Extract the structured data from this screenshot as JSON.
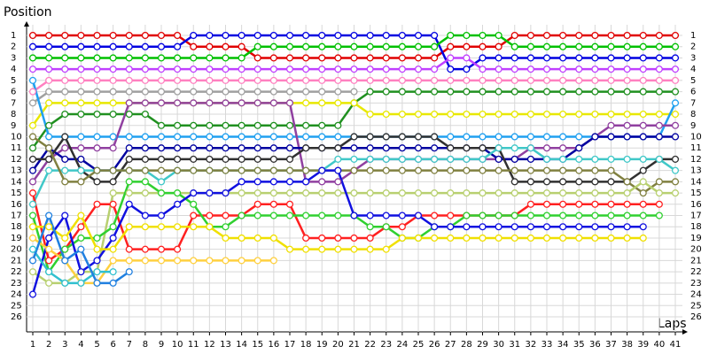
{
  "chart_data": {
    "type": "line",
    "title": "Position",
    "x_label": "Laps",
    "x": [
      1,
      2,
      3,
      4,
      5,
      6,
      7,
      8,
      9,
      10,
      11,
      12,
      13,
      14,
      15,
      16,
      17,
      18,
      19,
      20,
      21,
      22,
      23,
      24,
      25,
      26,
      27,
      28,
      29,
      30,
      31,
      32,
      33,
      34,
      35,
      36,
      37,
      38,
      39,
      40,
      41
    ],
    "xlim": [
      1,
      41
    ],
    "ylim": [
      1,
      26
    ],
    "y_inverted": true,
    "grid": true,
    "xticks": [
      1,
      2,
      3,
      4,
      5,
      6,
      7,
      8,
      9,
      10,
      11,
      12,
      13,
      14,
      15,
      16,
      17,
      18,
      19,
      20,
      21,
      22,
      23,
      24,
      25,
      26,
      27,
      28,
      29,
      30,
      31,
      32,
      33,
      34,
      35,
      36,
      37,
      38,
      39,
      40,
      41
    ],
    "yticks": [
      1,
      2,
      3,
      4,
      5,
      6,
      7,
      8,
      9,
      10,
      11,
      12,
      13,
      14,
      15,
      16,
      17,
      18,
      19,
      20,
      21,
      22,
      23,
      24,
      25,
      26
    ],
    "series": [
      {
        "color": "#e00000",
        "values": [
          1,
          1,
          1,
          1,
          1,
          1,
          1,
          1,
          1,
          1,
          2,
          2,
          2,
          2,
          3,
          3,
          3,
          3,
          3,
          3,
          3,
          3,
          3,
          3,
          3,
          3,
          2,
          2,
          2,
          2,
          1,
          1,
          1,
          1,
          1,
          1,
          1,
          1,
          1,
          1,
          1
        ]
      },
      {
        "color": "#0000e0",
        "values": [
          2,
          2,
          2,
          2,
          2,
          2,
          2,
          2,
          2,
          2,
          1,
          1,
          1,
          1,
          1,
          1,
          1,
          1,
          1,
          1,
          1,
          1,
          1,
          1,
          1,
          1,
          4,
          4,
          3,
          3,
          3,
          3,
          3,
          3,
          3,
          3,
          3,
          3,
          3,
          3,
          3
        ]
      },
      {
        "color": "#00c000",
        "values": [
          3,
          3,
          3,
          3,
          3,
          3,
          3,
          3,
          3,
          3,
          3,
          3,
          3,
          3,
          2,
          2,
          2,
          2,
          2,
          2,
          2,
          2,
          2,
          2,
          2,
          2,
          1,
          1,
          1,
          1,
          2,
          2,
          2,
          2,
          2,
          2,
          2,
          2,
          2,
          2,
          2
        ]
      },
      {
        "color": "#c040ff",
        "values": [
          4,
          4,
          4,
          4,
          4,
          4,
          4,
          4,
          4,
          4,
          4,
          4,
          4,
          4,
          4,
          4,
          4,
          4,
          4,
          4,
          4,
          4,
          4,
          4,
          4,
          4,
          3,
          3,
          4,
          4,
          4,
          4,
          4,
          4,
          4,
          4,
          4,
          4,
          4,
          4,
          4
        ]
      },
      {
        "color": "#ff80c0",
        "values": [
          6,
          5,
          5,
          5,
          5,
          5,
          5,
          5,
          5,
          5,
          5,
          5,
          5,
          5,
          5,
          5,
          5,
          5,
          5,
          5,
          5,
          5,
          5,
          5,
          5,
          5,
          5,
          5,
          5,
          5,
          5,
          5,
          5,
          5,
          5,
          5,
          5,
          5,
          5,
          5,
          5
        ]
      },
      {
        "color": "#a0a0a0",
        "values": [
          7,
          6,
          6,
          6,
          6,
          6,
          6,
          6,
          6,
          6,
          6,
          6,
          6,
          6,
          6,
          6,
          6,
          6,
          6,
          6,
          6,
          null,
          null,
          null,
          null,
          null,
          null,
          null,
          null,
          null,
          null,
          null,
          null,
          null,
          null,
          null,
          null,
          null,
          null,
          null,
          null
        ]
      },
      {
        "color": "#209020",
        "values": [
          11,
          9,
          8,
          8,
          8,
          8,
          8,
          8,
          9,
          9,
          9,
          9,
          9,
          9,
          9,
          9,
          9,
          9,
          9,
          9,
          7,
          6,
          6,
          6,
          6,
          6,
          6,
          6,
          6,
          6,
          6,
          6,
          6,
          6,
          6,
          6,
          6,
          6,
          6,
          6,
          6
        ]
      },
      {
        "color": "#e8e800",
        "values": [
          9,
          7,
          7,
          7,
          7,
          7,
          7,
          7,
          7,
          7,
          7,
          7,
          7,
          7,
          7,
          7,
          7,
          7,
          7,
          7,
          7,
          8,
          8,
          8,
          8,
          8,
          8,
          8,
          8,
          8,
          8,
          8,
          8,
          8,
          8,
          8,
          8,
          8,
          8,
          8,
          8
        ]
      },
      {
        "color": "#20a0f0",
        "values": [
          5,
          10,
          10,
          10,
          10,
          10,
          10,
          10,
          10,
          10,
          10,
          10,
          10,
          10,
          10,
          10,
          10,
          10,
          10,
          10,
          10,
          10,
          10,
          10,
          10,
          10,
          10,
          10,
          10,
          10,
          10,
          10,
          10,
          10,
          10,
          10,
          10,
          10,
          10,
          10,
          7
        ]
      },
      {
        "color": "#9040a0",
        "values": [
          14,
          12,
          11,
          11,
          11,
          11,
          7,
          7,
          7,
          7,
          7,
          7,
          7,
          7,
          7,
          7,
          7,
          14,
          14,
          14,
          13,
          12,
          12,
          12,
          12,
          12,
          12,
          12,
          12,
          12,
          12,
          11,
          11,
          11,
          11,
          10,
          9,
          9,
          9,
          9,
          9
        ]
      },
      {
        "color": "#0000a0",
        "values": [
          13,
          11,
          12,
          12,
          13,
          13,
          11,
          11,
          11,
          11,
          11,
          11,
          11,
          11,
          11,
          11,
          11,
          11,
          11,
          11,
          11,
          11,
          11,
          11,
          11,
          11,
          11,
          11,
          11,
          12,
          12,
          12,
          12,
          12,
          11,
          10,
          10,
          10,
          10,
          10,
          10
        ]
      },
      {
        "color": "#303030",
        "values": [
          12,
          12,
          10,
          13,
          14,
          14,
          12,
          12,
          12,
          12,
          12,
          12,
          12,
          12,
          12,
          12,
          12,
          11,
          11,
          11,
          10,
          10,
          10,
          10,
          10,
          10,
          11,
          11,
          11,
          11,
          14,
          14,
          14,
          14,
          14,
          14,
          14,
          14,
          13,
          12,
          12
        ]
      },
      {
        "color": "#40c8c8",
        "values": [
          16,
          13,
          13,
          13,
          13,
          13,
          13,
          13,
          14,
          13,
          13,
          13,
          13,
          13,
          13,
          13,
          13,
          13,
          13,
          12,
          12,
          12,
          12,
          12,
          12,
          12,
          12,
          12,
          12,
          11,
          11,
          11,
          12,
          12,
          12,
          12,
          12,
          12,
          12,
          12,
          13
        ]
      },
      {
        "color": "#808040",
        "values": [
          10,
          11,
          14,
          14,
          13,
          13,
          13,
          13,
          13,
          13,
          13,
          13,
          13,
          13,
          13,
          13,
          13,
          13,
          13,
          13,
          13,
          13,
          13,
          13,
          13,
          13,
          13,
          13,
          13,
          13,
          13,
          13,
          13,
          13,
          13,
          13,
          13,
          14,
          15,
          14,
          14
        ]
      },
      {
        "color": "#b8d070",
        "values": [
          22,
          23,
          23,
          22,
          22,
          15,
          15,
          15,
          15,
          15,
          15,
          15,
          15,
          15,
          15,
          15,
          15,
          15,
          15,
          15,
          15,
          15,
          15,
          15,
          15,
          15,
          15,
          15,
          15,
          15,
          15,
          15,
          15,
          15,
          15,
          15,
          15,
          15,
          14,
          15,
          15
        ]
      },
      {
        "color": "#ff2020",
        "values": [
          15,
          21,
          20,
          18,
          16,
          16,
          20,
          20,
          20,
          20,
          17,
          17,
          17,
          17,
          16,
          16,
          16,
          19,
          19,
          19,
          19,
          19,
          18,
          18,
          17,
          17,
          17,
          17,
          17,
          17,
          17,
          16,
          16,
          16,
          16,
          16,
          16,
          16,
          16,
          16,
          null
        ]
      },
      {
        "color": "#30d030",
        "values": [
          17,
          22,
          20,
          19,
          19,
          18,
          14,
          14,
          15,
          15,
          16,
          18,
          18,
          17,
          17,
          17,
          17,
          17,
          17,
          17,
          17,
          18,
          18,
          19,
          19,
          18,
          18,
          17,
          17,
          17,
          17,
          17,
          17,
          17,
          17,
          17,
          17,
          17,
          17,
          17,
          null
        ]
      },
      {
        "color": "#1010e0",
        "values": [
          24,
          19,
          17,
          22,
          21,
          19,
          16,
          17,
          17,
          16,
          15,
          15,
          15,
          14,
          14,
          14,
          14,
          14,
          13,
          13,
          17,
          17,
          17,
          17,
          17,
          18,
          18,
          18,
          18,
          18,
          18,
          18,
          18,
          18,
          18,
          18,
          18,
          18,
          18,
          null,
          null
        ]
      },
      {
        "color": "#f0e000",
        "values": [
          18,
          18,
          19,
          17,
          20,
          20,
          18,
          18,
          18,
          18,
          18,
          18,
          19,
          19,
          19,
          19,
          20,
          20,
          20,
          20,
          20,
          20,
          20,
          19,
          19,
          19,
          19,
          19,
          19,
          19,
          19,
          19,
          19,
          19,
          19,
          19,
          19,
          19,
          19,
          null,
          null
        ]
      },
      {
        "color": "#ffd040",
        "values": [
          19,
          20,
          21,
          23,
          23,
          21,
          21,
          21,
          21,
          21,
          21,
          21,
          21,
          21,
          21,
          21,
          null,
          null,
          null,
          null,
          null,
          null,
          null,
          null,
          null,
          null,
          null,
          null,
          null,
          null,
          null,
          null,
          null,
          null,
          null,
          null,
          null,
          null,
          null,
          null,
          null
        ]
      },
      {
        "color": "#30c0d0",
        "values": [
          20,
          22,
          23,
          23,
          22,
          22,
          null,
          null,
          null,
          null,
          null,
          null,
          null,
          null,
          null,
          null,
          null,
          null,
          null,
          null,
          null,
          null,
          null,
          null,
          null,
          null,
          null,
          null,
          null,
          null,
          null,
          null,
          null,
          null,
          null,
          null,
          null,
          null,
          null,
          null,
          null
        ]
      },
      {
        "color": "#2080e0",
        "values": [
          21,
          17,
          21,
          20,
          23,
          23,
          22,
          null,
          null,
          null,
          null,
          null,
          null,
          null,
          null,
          null,
          null,
          null,
          null,
          null,
          null,
          null,
          null,
          null,
          null,
          null,
          null,
          null,
          null,
          null,
          null,
          null,
          null,
          null,
          null,
          null,
          null,
          null,
          null,
          null,
          null
        ]
      }
    ]
  }
}
